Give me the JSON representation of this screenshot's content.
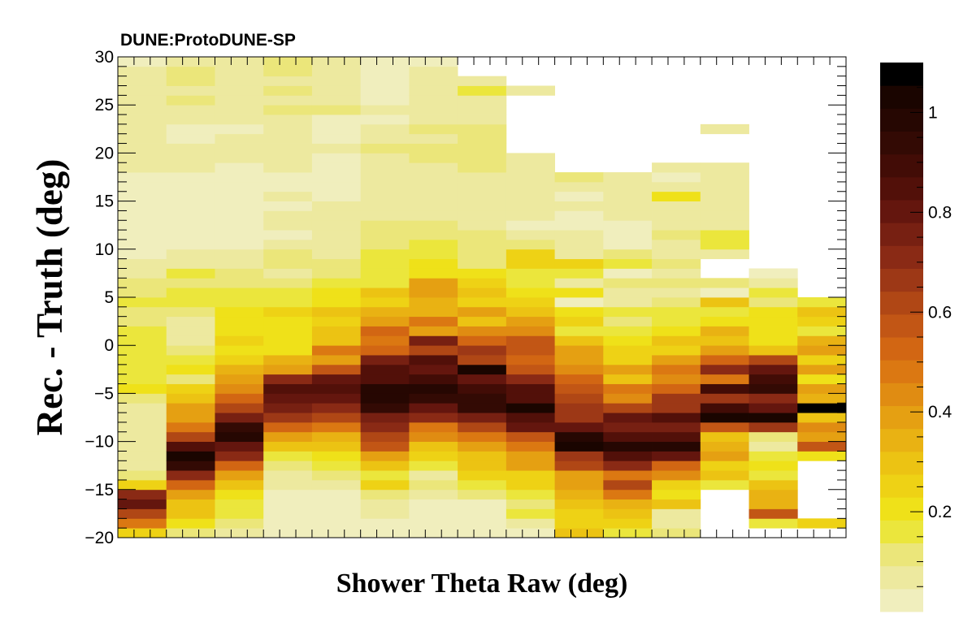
{
  "chart_data": {
    "type": "heatmap",
    "experiment_label": "DUNE:ProtoDUNE-SP",
    "xlabel": "Shower Theta Raw (deg)",
    "ylabel": "Rec. - Truth (deg)",
    "ylim": [
      -20,
      30
    ],
    "y_ticks": [
      -20,
      -15,
      -10,
      -5,
      0,
      5,
      10,
      15,
      20,
      25,
      30
    ],
    "y_tick_labels": [
      "−20",
      "−15",
      "−10",
      "−5",
      "0",
      "5",
      "10",
      "15",
      "20",
      "25",
      "30"
    ],
    "colorbar": {
      "range": [
        0,
        1.1
      ],
      "ticks": [
        0.2,
        0.4,
        0.6,
        0.8,
        1
      ],
      "tick_labels": [
        "0.2",
        "0.4",
        "0.6",
        "0.8",
        "1"
      ],
      "palette": [
        "#f0eebd",
        "#ede99f",
        "#ebe67a",
        "#ebe63c",
        "#efe119",
        "#eed215",
        "#ecc313",
        "#e9b213",
        "#e5a012",
        "#e08c12",
        "#db7812",
        "#d26613",
        "#c25615",
        "#b04715",
        "#9d3816",
        "#8a2a15",
        "#772012",
        "#64160e",
        "#521009",
        "#420c06",
        "#330a04",
        "#260702",
        "#1a0500",
        "#000000"
      ]
    },
    "x_bins": 15,
    "y_bins": 50,
    "values": [
      [
        0.24,
        0.48,
        0.64,
        0.82,
        0.7,
        0.26,
        0.13,
        0.09,
        0.06,
        0.06,
        0.05,
        0.05,
        0.07,
        0.08,
        0.11,
        0.22,
        0.17,
        0.14,
        0.14,
        0.14,
        0.14,
        0.14,
        0.11,
        0.12,
        0.14,
        0.12,
        0.1,
        0.09,
        0.05,
        0.04,
        0.03,
        0.03,
        0.02,
        0.02,
        0.02,
        0.02,
        0.03,
        0.03,
        0.08,
        0.07,
        0.06,
        0.06,
        0.08,
        0.07,
        0.05,
        0.05,
        0.05,
        0.05,
        0.06,
        0.04
      ],
      [
        0.13,
        0.22,
        0.28,
        0.32,
        0.39,
        0.54,
        0.72,
        0.95,
        1.02,
        0.85,
        0.6,
        0.46,
        0.4,
        0.4,
        0.28,
        0.26,
        0.11,
        0.19,
        0.17,
        0.13,
        0.09,
        0.08,
        0.09,
        0.13,
        0.18,
        0.14,
        0.12,
        0.15,
        0.09,
        0.06,
        0.04,
        0.02,
        0.02,
        0.02,
        0.02,
        0.02,
        0.03,
        0.03,
        0.08,
        0.06,
        0.05,
        0.04,
        0.03,
        0.08,
        0.06,
        0.11,
        0.05,
        0.11,
        0.12,
        0.06
      ],
      [
        0.08,
        0.1,
        0.14,
        0.18,
        0.22,
        0.3,
        0.39,
        0.52,
        0.69,
        0.82,
        1.0,
        0.92,
        0.77,
        0.64,
        0.54,
        0.44,
        0.39,
        0.35,
        0.27,
        0.22,
        0.25,
        0.22,
        0.19,
        0.2,
        0.16,
        0.14,
        0.11,
        0.11,
        0.08,
        0.08,
        0.02,
        0.02,
        0.02,
        0.02,
        0.02,
        0.04,
        0.03,
        0.04,
        0.03,
        0.08,
        0.08,
        0.06,
        0.03,
        0.05,
        0.08,
        0.09,
        0.09,
        0.07,
        0.06,
        0.06
      ],
      [
        0.04,
        0.02,
        0.02,
        0.02,
        0.04,
        0.05,
        0.08,
        0.12,
        0.17,
        0.29,
        0.4,
        0.52,
        0.66,
        0.74,
        0.82,
        0.84,
        0.7,
        0.4,
        0.34,
        0.2,
        0.21,
        0.19,
        0.19,
        0.27,
        0.17,
        0.16,
        0.12,
        0.08,
        0.12,
        0.1,
        0.09,
        0.02,
        0.05,
        0.08,
        0.02,
        0.05,
        0.03,
        0.02,
        0.08,
        0.07,
        0.06,
        0.06,
        0.05,
        0.09,
        0.1,
        0.08,
        0.13,
        0.08,
        0.1,
        0.12
      ],
      [
        0.04,
        0.02,
        0.02,
        0.02,
        0.04,
        0.05,
        0.1,
        0.15,
        0.2,
        0.3,
        0.35,
        0.46,
        0.64,
        0.7,
        0.8,
        0.83,
        0.79,
        0.59,
        0.41,
        0.47,
        0.28,
        0.3,
        0.26,
        0.29,
        0.21,
        0.2,
        0.16,
        0.1,
        0.11,
        0.08,
        0.07,
        0.05,
        0.09,
        0.07,
        0.05,
        0.02,
        0.02,
        0.03,
        0.02,
        0.03,
        0.07,
        0.04,
        0.03,
        0.03,
        0.11,
        0.07,
        0.06,
        0.06,
        0.06,
        0.05
      ],
      [
        0.02,
        0.02,
        0.05,
        0.07,
        0.13,
        0.23,
        0.14,
        0.29,
        0.4,
        0.55,
        0.62,
        0.72,
        0.74,
        0.93,
        0.98,
        0.97,
        0.86,
        0.87,
        0.76,
        0.53,
        0.46,
        0.51,
        0.38,
        0.36,
        0.26,
        0.28,
        0.18,
        0.16,
        0.15,
        0.16,
        0.12,
        0.13,
        0.1,
        0.09,
        0.07,
        0.07,
        0.05,
        0.05,
        0.08,
        0.05,
        0.1,
        0.06,
        0.07,
        0.04,
        0.06,
        0.03,
        0.03,
        0.03,
        0.02,
        0.02
      ],
      [
        0.02,
        0.02,
        0.03,
        0.04,
        0.06,
        0.12,
        0.09,
        0.18,
        0.26,
        0.32,
        0.45,
        0.49,
        0.69,
        0.82,
        0.92,
        0.97,
        0.91,
        0.79,
        0.86,
        0.6,
        0.77,
        0.39,
        0.46,
        0.35,
        0.36,
        0.38,
        0.37,
        0.22,
        0.2,
        0.18,
        0.14,
        0.13,
        0.11,
        0.09,
        0.06,
        0.09,
        0.08,
        0.07,
        0.07,
        0.12,
        0.11,
        0.08,
        0.11,
        0.08,
        0.08,
        0.06,
        0.05,
        0.05,
        0.07,
        0.02
      ],
      [
        0.02,
        0.02,
        0.02,
        0.02,
        0.13,
        0.14,
        0.23,
        0.28,
        0.3,
        0.38,
        0.5,
        0.61,
        0.76,
        0.94,
        0.92,
        0.91,
        0.8,
        1.04,
        0.62,
        0.68,
        0.53,
        0.45,
        0.31,
        0.4,
        0.24,
        0.3,
        0.26,
        0.19,
        0.13,
        0.1,
        0.1,
        0.1,
        0.06,
        0.09,
        0.07,
        0.08,
        0.06,
        0.07,
        0.13,
        0.11,
        0.13,
        0.1,
        0.1,
        0.09,
        0.09,
        0.09,
        0.15,
        0.06,
        0.0,
        0.0
      ],
      [
        0.02,
        0.05,
        0.17,
        0.12,
        0.18,
        0.23,
        0.26,
        0.37,
        0.41,
        0.47,
        0.57,
        0.78,
        0.85,
        1.01,
        0.87,
        0.84,
        0.71,
        0.58,
        0.51,
        0.56,
        0.57,
        0.42,
        0.37,
        0.28,
        0.24,
        0.2,
        0.16,
        0.15,
        0.23,
        0.23,
        0.1,
        0.09,
        0.04,
        0.08,
        0.07,
        0.05,
        0.09,
        0.05,
        0.06,
        0.07,
        0.0,
        0.0,
        0.0,
        0.0,
        0.0,
        0.0,
        0.07,
        0.0,
        0.0,
        0.0
      ],
      [
        0.31,
        0.27,
        0.24,
        0.29,
        0.33,
        0.39,
        0.41,
        0.6,
        0.66,
        1.03,
        1.0,
        0.81,
        0.68,
        0.68,
        0.64,
        0.58,
        0.51,
        0.45,
        0.41,
        0.4,
        0.28,
        0.18,
        0.23,
        0.21,
        0.03,
        0.21,
        0.09,
        0.15,
        0.23,
        0.08,
        0.07,
        0.05,
        0.02,
        0.02,
        0.09,
        0.02,
        0.05,
        0.1,
        0.0,
        0.0,
        0.0,
        0.0,
        0.0,
        0.0,
        0.0,
        0.0,
        0.0,
        0.0,
        0.0,
        0.0
      ],
      [
        0.18,
        0.26,
        0.29,
        0.36,
        0.47,
        0.61,
        0.5,
        0.71,
        0.85,
        0.98,
        0.83,
        0.74,
        0.8,
        0.6,
        0.42,
        0.48,
        0.3,
        0.39,
        0.26,
        0.27,
        0.19,
        0.15,
        0.13,
        0.15,
        0.09,
        0.07,
        0.1,
        0.04,
        0.16,
        0.11,
        0.02,
        0.02,
        0.02,
        0.09,
        0.08,
        0.07,
        0.06,
        0.08,
        0.0,
        0.0,
        0.0,
        0.0,
        0.0,
        0.0,
        0.0,
        0.0,
        0.0,
        0.0,
        0.0,
        0.0
      ],
      [
        0.1,
        0.07,
        0.07,
        0.31,
        0.22,
        0.26,
        0.42,
        0.54,
        0.79,
        0.99,
        0.84,
        0.77,
        0.87,
        0.68,
        0.68,
        0.51,
        0.44,
        0.46,
        0.37,
        0.27,
        0.31,
        0.21,
        0.17,
        0.16,
        0.11,
        0.07,
        0.1,
        0.09,
        0.13,
        0.06,
        0.07,
        0.12,
        0.08,
        0.07,
        0.07,
        0.2,
        0.05,
        0.04,
        0.05,
        0.0,
        0.0,
        0.0,
        0.0,
        0.0,
        0.0,
        0.0,
        0.0,
        0.0,
        0.0,
        0.0
      ],
      [
        0.0,
        0.0,
        0.0,
        0.0,
        0.0,
        0.15,
        0.28,
        0.27,
        0.41,
        0.36,
        0.3,
        0.56,
        1.01,
        0.9,
        0.67,
        0.9,
        0.48,
        0.71,
        0.51,
        0.4,
        0.32,
        0.34,
        0.21,
        0.18,
        0.28,
        0.02,
        0.12,
        0.0,
        0.0,
        0.08,
        0.17,
        0.14,
        0.07,
        0.07,
        0.05,
        0.06,
        0.07,
        0.05,
        0.08,
        0.0,
        0.0,
        0.0,
        0.09,
        0.0,
        0.0,
        0.0,
        0.0,
        0.0,
        0.0,
        0.0
      ],
      [
        0.0,
        0.18,
        0.55,
        0.33,
        0.34,
        0.32,
        0.17,
        0.21,
        0.14,
        0.09,
        0.12,
        0.68,
        1.02,
        0.8,
        0.71,
        0.94,
        0.9,
        0.82,
        0.64,
        0.28,
        0.2,
        0.19,
        0.19,
        0.21,
        0.1,
        0.14,
        0.09,
        0.03,
        0.0,
        0.0,
        0.0,
        0.0,
        0.0,
        0.0,
        0.0,
        0.0,
        0.0,
        0.0,
        0.0,
        0.0,
        0.0,
        0.0,
        0.0,
        0.0,
        0.0,
        0.0,
        0.0,
        0.0,
        0.0,
        0.0
      ],
      [
        0.0,
        0.23,
        0.0,
        0.0,
        0.0,
        0.0,
        0.0,
        0.0,
        0.21,
        0.57,
        0.38,
        0.44,
        0.3,
        1.08,
        0.36,
        0.37,
        0.2,
        0.39,
        0.26,
        0.41,
        0.33,
        0.18,
        0.27,
        0.28,
        0.17,
        0.0,
        0.0,
        0.0,
        0.0,
        0.0,
        0.0,
        0.0,
        0.0,
        0.0,
        0.0,
        0.0,
        0.0,
        0.0,
        0.0,
        0.0,
        0.0,
        0.0,
        0.0,
        0.0,
        0.0,
        0.0,
        0.0,
        0.0,
        0.0,
        0.0
      ]
    ]
  }
}
